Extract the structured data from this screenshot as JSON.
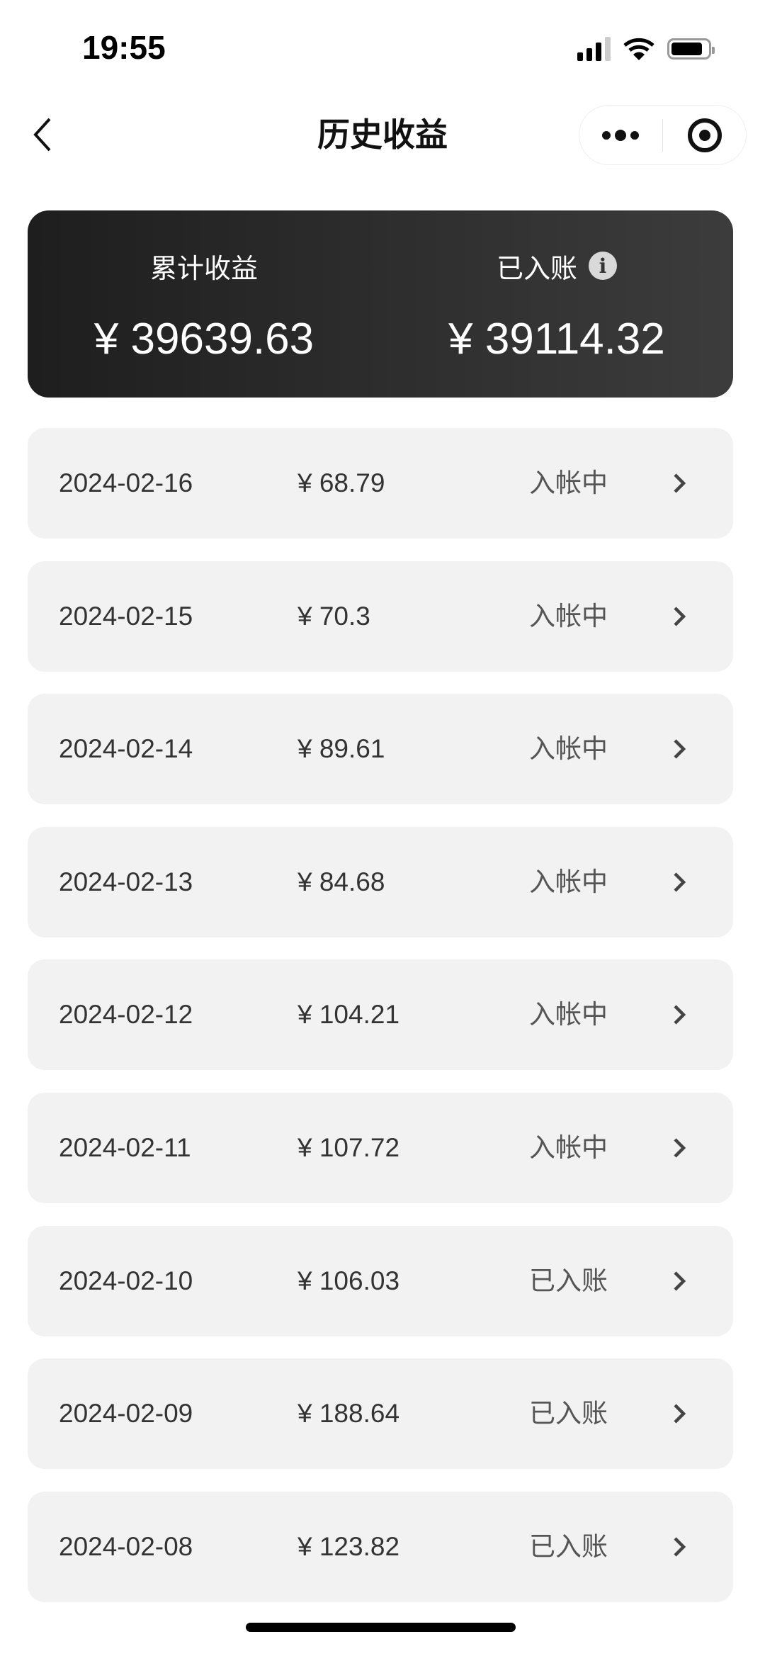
{
  "status_bar": {
    "time": "19:55",
    "icons": [
      "signal-icon",
      "wifi-icon",
      "battery-icon"
    ]
  },
  "nav": {
    "title": "历史收益",
    "back_icon": "chevron-left-icon",
    "more_icon": "more-dots-icon",
    "close_icon": "target-circle-icon"
  },
  "summary": {
    "total_label": "累计收益",
    "total_amount": "¥ 39639.63",
    "settled_label": "已入账",
    "settled_amount": "¥ 39114.32",
    "info_icon": "info-icon"
  },
  "records": [
    {
      "date": "2024-02-16",
      "amount": "¥ 68.79",
      "status": "入帐中"
    },
    {
      "date": "2024-02-15",
      "amount": "¥ 70.3",
      "status": "入帐中"
    },
    {
      "date": "2024-02-14",
      "amount": "¥ 89.61",
      "status": "入帐中"
    },
    {
      "date": "2024-02-13",
      "amount": "¥ 84.68",
      "status": "入帐中"
    },
    {
      "date": "2024-02-12",
      "amount": "¥ 104.21",
      "status": "入帐中"
    },
    {
      "date": "2024-02-11",
      "amount": "¥ 107.72",
      "status": "入帐中"
    },
    {
      "date": "2024-02-10",
      "amount": "¥ 106.03",
      "status": "已入账"
    },
    {
      "date": "2024-02-09",
      "amount": "¥ 188.64",
      "status": "已入账"
    },
    {
      "date": "2024-02-08",
      "amount": "¥ 123.82",
      "status": "已入账"
    }
  ],
  "colors": {
    "card_bg": "#2a2a2a",
    "row_bg": "#f2f2f2",
    "text": "#333333"
  }
}
